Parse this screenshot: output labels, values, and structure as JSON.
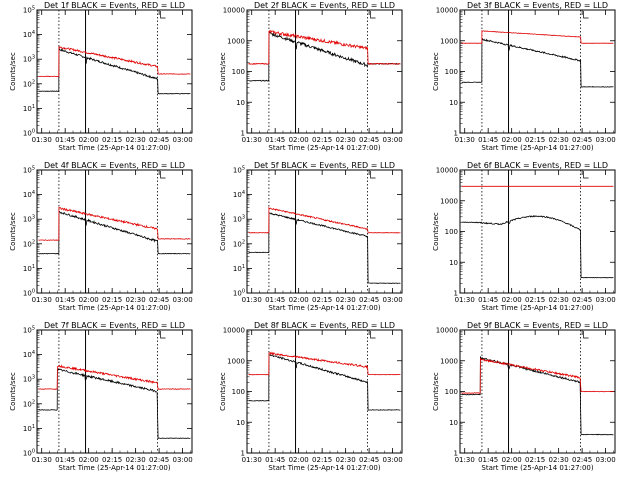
{
  "colors": {
    "events": "#000000",
    "lld": "#e00000",
    "axes": "#000000"
  },
  "common": {
    "xlabel": "Start Time (25-Apr-14 01:27:00)",
    "ylabel": "Counts/sec",
    "x_ticks": [
      "01:30",
      "01:45",
      "02:00",
      "02:15",
      "02:30",
      "02:45",
      "03:00"
    ]
  },
  "chart_data": [
    {
      "type": "line",
      "title": "Det 1f BLACK = Events, RED = LLD",
      "scale": "exp",
      "yticks": [
        "10^0",
        "10^1",
        "10^2",
        "10^3",
        "10^4",
        "10^5"
      ],
      "ylim": [
        0,
        5
      ],
      "xlim": [
        "01:27",
        "03:06"
      ],
      "flare_start": "01:41",
      "flare_end": "02:44",
      "markers": [
        "01:41",
        "01:58",
        "02:44"
      ],
      "series": [
        {
          "name": "BLACK = Events",
          "pre": 1.7,
          "start": 3.4,
          "end": 2.2,
          "post": 1.6,
          "noise": 0.04,
          "dip": 0.5
        },
        {
          "name": "RED = LLD",
          "pre": 2.3,
          "start": 3.5,
          "end": 2.7,
          "post": 2.4,
          "noise": 0.04,
          "dip": 0
        }
      ]
    },
    {
      "type": "line",
      "title": "Det 2f BLACK = Events, RED = LLD",
      "scale": "plain",
      "yticks": [
        "1",
        "10",
        "100",
        "1000",
        "10000"
      ],
      "ylim": [
        0,
        4
      ],
      "xlim": [
        "01:27",
        "03:06"
      ],
      "flare_start": "01:41",
      "flare_end": "02:44",
      "markers": [
        "01:41",
        "01:58",
        "02:44"
      ],
      "series": [
        {
          "name": "BLACK = Events",
          "pre": 1.7,
          "start": 3.25,
          "end": 2.2,
          "post": 2.25,
          "noise": 0.05,
          "dip": 0.5
        },
        {
          "name": "RED = LLD",
          "pre": 2.25,
          "start": 3.3,
          "end": 2.75,
          "post": 2.25,
          "noise": 0.05,
          "dip": 0
        }
      ]
    },
    {
      "type": "line",
      "title": "Det 3f BLACK = Events, RED = LLD",
      "scale": "plain",
      "yticks": [
        "1",
        "10",
        "100",
        "1000",
        "10000"
      ],
      "ylim": [
        0,
        4
      ],
      "xlim": [
        "01:27",
        "03:06"
      ],
      "flare_start": "01:41",
      "flare_end": "02:44",
      "markers": [
        "01:41",
        "01:58",
        "02:44"
      ],
      "series": [
        {
          "name": "BLACK = Events",
          "pre": 1.65,
          "start": 3.05,
          "end": 2.35,
          "post": 1.5,
          "noise": 0.025,
          "dip": 0.4
        },
        {
          "name": "RED = LLD",
          "pre": 2.92,
          "start": 3.32,
          "end": 3.12,
          "post": 2.92,
          "noise": 0.008,
          "dip": 0
        }
      ]
    },
    {
      "type": "line",
      "title": "Det 4f BLACK = Events, RED = LLD",
      "scale": "exp",
      "yticks": [
        "10^0",
        "10^1",
        "10^2",
        "10^3",
        "10^4",
        "10^5"
      ],
      "ylim": [
        0,
        5
      ],
      "xlim": [
        "01:27",
        "03:06"
      ],
      "flare_start": "01:41",
      "flare_end": "02:44",
      "markers": [
        "01:41",
        "01:58",
        "02:44"
      ],
      "series": [
        {
          "name": "BLACK = Events",
          "pre": 1.6,
          "start": 3.3,
          "end": 2.1,
          "post": 1.6,
          "noise": 0.04,
          "dip": 0.5
        },
        {
          "name": "RED = LLD",
          "pre": 2.15,
          "start": 3.45,
          "end": 2.6,
          "post": 2.2,
          "noise": 0.04,
          "dip": 0
        }
      ]
    },
    {
      "type": "line",
      "title": "Det 5f BLACK = Events, RED = LLD",
      "scale": "exp",
      "yticks": [
        "10^0",
        "10^1",
        "10^2",
        "10^3",
        "10^4",
        "10^5"
      ],
      "ylim": [
        0,
        5
      ],
      "xlim": [
        "01:27",
        "03:06"
      ],
      "flare_start": "01:41",
      "flare_end": "02:44",
      "markers": [
        "01:41",
        "01:58",
        "02:44"
      ],
      "series": [
        {
          "name": "BLACK = Events",
          "pre": 1.65,
          "start": 3.25,
          "end": 2.3,
          "post": 0.4,
          "noise": 0.03,
          "dip": 0.4
        },
        {
          "name": "RED = LLD",
          "pre": 2.45,
          "start": 3.45,
          "end": 2.6,
          "post": 2.45,
          "noise": 0.03,
          "dip": 0
        }
      ]
    },
    {
      "type": "line",
      "title": "Det 6f BLACK = Events, RED = LLD",
      "scale": "plain",
      "yticks": [
        "1",
        "10",
        "100",
        "1000",
        "10000"
      ],
      "ylim": [
        0,
        4
      ],
      "xlim": [
        "01:27",
        "03:06"
      ],
      "flare_start": "01:36",
      "flare_end": "02:44",
      "markers": [
        "01:41",
        "01:58",
        "02:44"
      ],
      "series": [
        {
          "name": "BLACK = Events",
          "pre": 2.3,
          "start": 2.3,
          "end": 2.05,
          "post": 0.5,
          "noise": 0.02,
          "dip": 0.2,
          "bump": 0.35
        },
        {
          "name": "RED = LLD",
          "pre": 3.47,
          "start": 3.47,
          "end": 3.47,
          "post": 3.47,
          "noise": 0,
          "dip": 0
        }
      ]
    },
    {
      "type": "line",
      "title": "Det 7f BLACK = Events, RED = LLD",
      "scale": "exp",
      "yticks": [
        "10^0",
        "10^1",
        "10^2",
        "10^3",
        "10^4",
        "10^5"
      ],
      "ylim": [
        0,
        5
      ],
      "xlim": [
        "01:27",
        "03:06"
      ],
      "flare_start": "01:40",
      "flare_end": "02:44",
      "markers": [
        "01:41",
        "01:58",
        "02:44"
      ],
      "series": [
        {
          "name": "BLACK = Events",
          "pre": 1.75,
          "start": 3.4,
          "end": 2.5,
          "post": 0.6,
          "noise": 0.04,
          "dip": 0.4
        },
        {
          "name": "RED = LLD",
          "pre": 2.6,
          "start": 3.55,
          "end": 2.85,
          "post": 2.6,
          "noise": 0.04,
          "dip": 0
        }
      ]
    },
    {
      "type": "line",
      "title": "Det 8f BLACK = Events, RED = LLD",
      "scale": "plain",
      "yticks": [
        "1",
        "10",
        "100",
        "1000",
        "10000"
      ],
      "ylim": [
        0,
        4
      ],
      "xlim": [
        "01:27",
        "03:06"
      ],
      "flare_start": "01:41",
      "flare_end": "02:44",
      "markers": [
        "01:41",
        "01:58",
        "02:44"
      ],
      "series": [
        {
          "name": "BLACK = Events",
          "pre": 1.7,
          "start": 3.2,
          "end": 2.3,
          "post": 1.4,
          "noise": 0.03,
          "dip": 0.4
        },
        {
          "name": "RED = LLD",
          "pre": 2.55,
          "start": 3.25,
          "end": 2.8,
          "post": 2.55,
          "noise": 0.03,
          "dip": 0
        }
      ]
    },
    {
      "type": "line",
      "title": "Det 9f BLACK = Events, RED = LLD",
      "scale": "plain",
      "yticks": [
        "1",
        "10",
        "100",
        "1000",
        "10000"
      ],
      "ylim": [
        0,
        4
      ],
      "xlim": [
        "01:27",
        "03:06"
      ],
      "flare_start": "01:40",
      "flare_end": "02:44",
      "markers": [
        "01:41",
        "01:58",
        "02:44"
      ],
      "series": [
        {
          "name": "BLACK = Events",
          "pre": 1.9,
          "start": 3.1,
          "end": 2.3,
          "post": 0.6,
          "noise": 0.03,
          "dip": 0.3
        },
        {
          "name": "RED = LLD",
          "pre": 1.95,
          "start": 3.05,
          "end": 2.45,
          "post": 2.0,
          "noise": 0.03,
          "dip": 0
        }
      ]
    }
  ]
}
